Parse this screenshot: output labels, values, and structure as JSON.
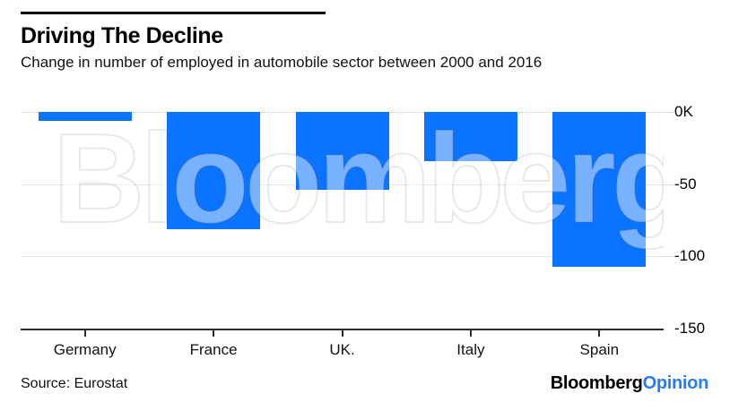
{
  "header": {
    "title": "Driving The Decline",
    "subtitle": "Change in number of employed in automobile sector between 2000 and 2016"
  },
  "chart_data": {
    "type": "bar",
    "title": "Driving The Decline",
    "subtitle": "Change in number of employed in automobile sector between 2000 and 2016",
    "categories": [
      "Germany",
      "France",
      "UK.",
      "Italy",
      "Spain"
    ],
    "values": [
      -6,
      -81,
      -54,
      -34,
      -107
    ],
    "unit": "thousands of employees (K)",
    "ylim": [
      -150,
      0
    ],
    "y_ticks": [
      {
        "label": "0K",
        "value": 0
      },
      {
        "label": "-50",
        "value": -50
      },
      {
        "label": "-100",
        "value": -100
      },
      {
        "label": "-150",
        "value": -150
      }
    ],
    "grid": true,
    "legend_position": "none",
    "bar_color": "#0a73ff",
    "watermark": "Bloomberg"
  },
  "footer": {
    "source": "Source: Eurostat",
    "logo": {
      "bloomberg": "Bloomberg",
      "opinion": "Opinion",
      "opinion_color": "#2b7bf0"
    }
  }
}
